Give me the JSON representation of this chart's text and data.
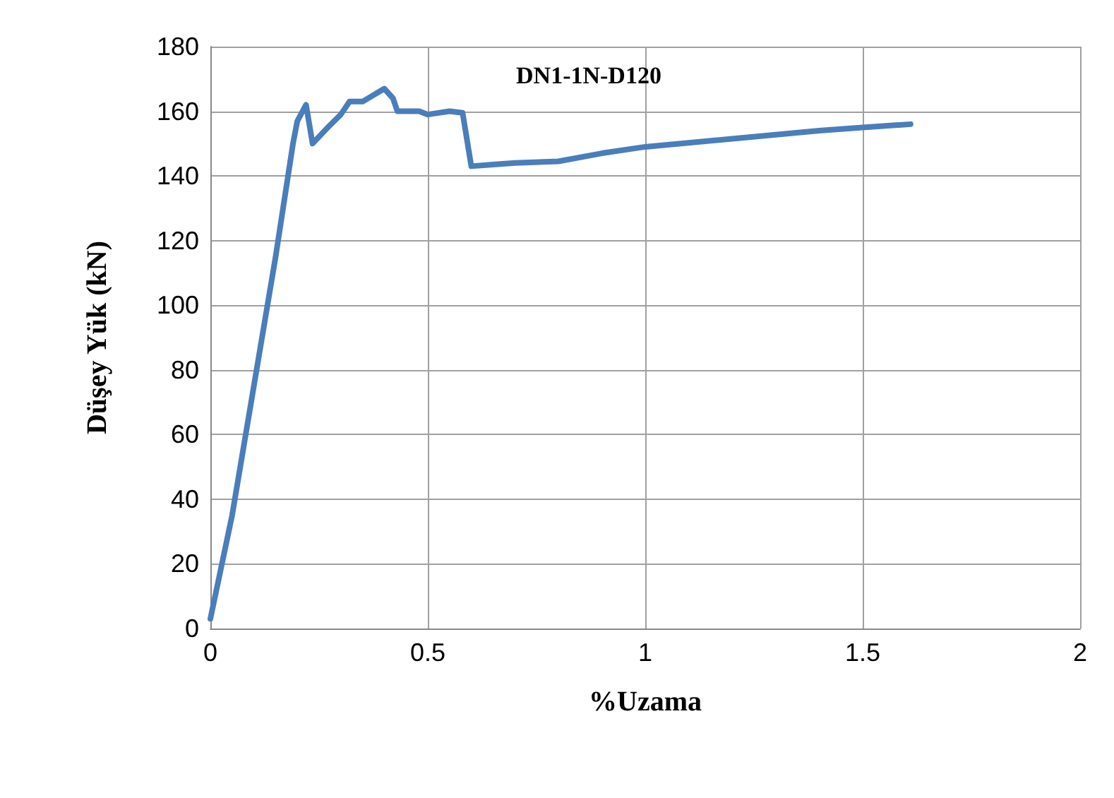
{
  "chart_data": {
    "type": "line",
    "title": "DN1-1N-D120",
    "xlabel": "%Uzama",
    "ylabel": "Düşey Yük (kN)",
    "series": [
      {
        "color": "#4a7ebb",
        "x": [
          0,
          0.05,
          0.1,
          0.15,
          0.19,
          0.2,
          0.22,
          0.235,
          0.27,
          0.3,
          0.32,
          0.35,
          0.4,
          0.42,
          0.43,
          0.48,
          0.5,
          0.55,
          0.58,
          0.6,
          0.65,
          0.7,
          0.8,
          0.9,
          1.0,
          1.2,
          1.4,
          1.5,
          1.61
        ],
        "values": [
          3,
          35,
          75,
          115,
          150,
          157,
          162,
          150,
          155,
          159,
          163,
          163,
          167,
          164,
          160,
          160,
          159,
          160,
          159.5,
          143,
          143.5,
          144,
          144.5,
          147,
          149,
          151.5,
          154,
          155,
          156
        ]
      }
    ],
    "xlim": [
      0,
      2
    ],
    "xticks": [
      0,
      0.5,
      1,
      1.5,
      2
    ],
    "ylim": [
      0,
      180
    ],
    "yticks": [
      0,
      20,
      40,
      60,
      80,
      100,
      120,
      140,
      160,
      180
    ],
    "grid": true,
    "marker": "none",
    "line_style": "solid"
  }
}
